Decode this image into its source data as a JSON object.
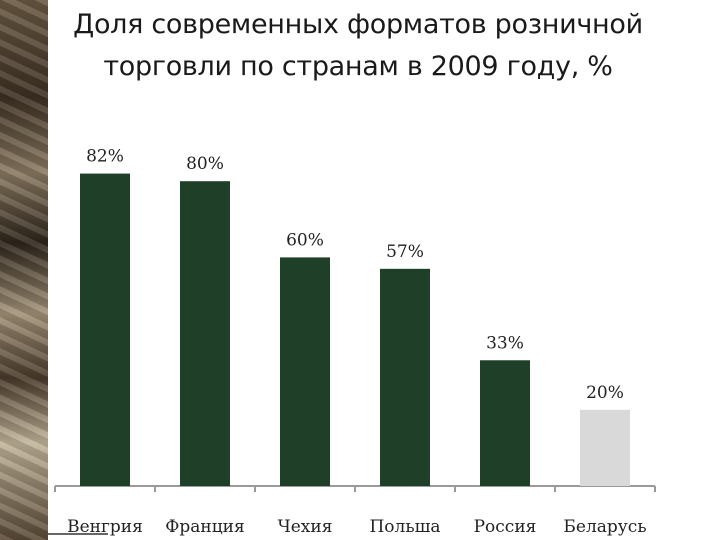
{
  "chart_data": {
    "type": "bar",
    "title": "Доля современных форматов розничной торговли по странам в 2009 году, %",
    "categories": [
      "Венгрия",
      "Франция",
      "Чехия",
      "Польша",
      "Россия",
      "Беларусь"
    ],
    "values": [
      82,
      80,
      60,
      57,
      33,
      20
    ],
    "value_labels": [
      "82%",
      "80%",
      "60%",
      "57%",
      "33%",
      "20%"
    ],
    "colors": [
      "#1f3f28",
      "#1f3f28",
      "#1f3f28",
      "#1f3f28",
      "#1f3f28",
      "#d9d9d9"
    ],
    "ylim": [
      0,
      100
    ],
    "grid": false,
    "legend": "none",
    "xlabel": "",
    "ylabel": ""
  }
}
